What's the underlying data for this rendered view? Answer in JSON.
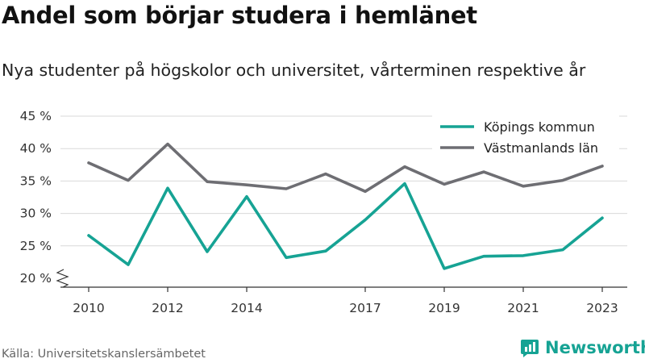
{
  "title": "Andel som börjar studera i hemlänet",
  "subtitle": "Nya studenter på högskolor och universitet, vårterminen respektive år",
  "source": "Källa: Universitetskanslersämbetet",
  "brand": "Newsworthy",
  "colors": {
    "teal": "#16a394",
    "gray": "#6e6e73",
    "grid": "#d9d9d9",
    "axis": "#333333",
    "brand": "#16a394"
  },
  "chart_data": {
    "type": "line",
    "x": [
      2010,
      2011,
      2012,
      2013,
      2014,
      2015,
      2016,
      2017,
      2018,
      2019,
      2020,
      2021,
      2022,
      2023
    ],
    "x_tick_labels": [
      "2010",
      "2012",
      "2014",
      "2017",
      "2019",
      "2021",
      "2023"
    ],
    "y_tick_labels": [
      "20 %",
      "25 %",
      "30 %",
      "35 %",
      "40 %",
      "45 %"
    ],
    "ylim": [
      20,
      45
    ],
    "y_axis_break": true,
    "grid": true,
    "legend_position": "top-right",
    "series": [
      {
        "name": "Köpings kommun",
        "color": "#16a394",
        "values": [
          26.6,
          22.1,
          33.9,
          24.1,
          32.6,
          23.2,
          24.2,
          29.0,
          34.6,
          21.5,
          23.4,
          23.5,
          24.4,
          29.3
        ]
      },
      {
        "name": "Västmanlands län",
        "color": "#6e6e73",
        "values": [
          37.8,
          35.1,
          40.7,
          34.9,
          34.4,
          33.8,
          36.1,
          33.4,
          37.2,
          34.5,
          36.4,
          34.2,
          35.1,
          37.3
        ]
      }
    ]
  }
}
